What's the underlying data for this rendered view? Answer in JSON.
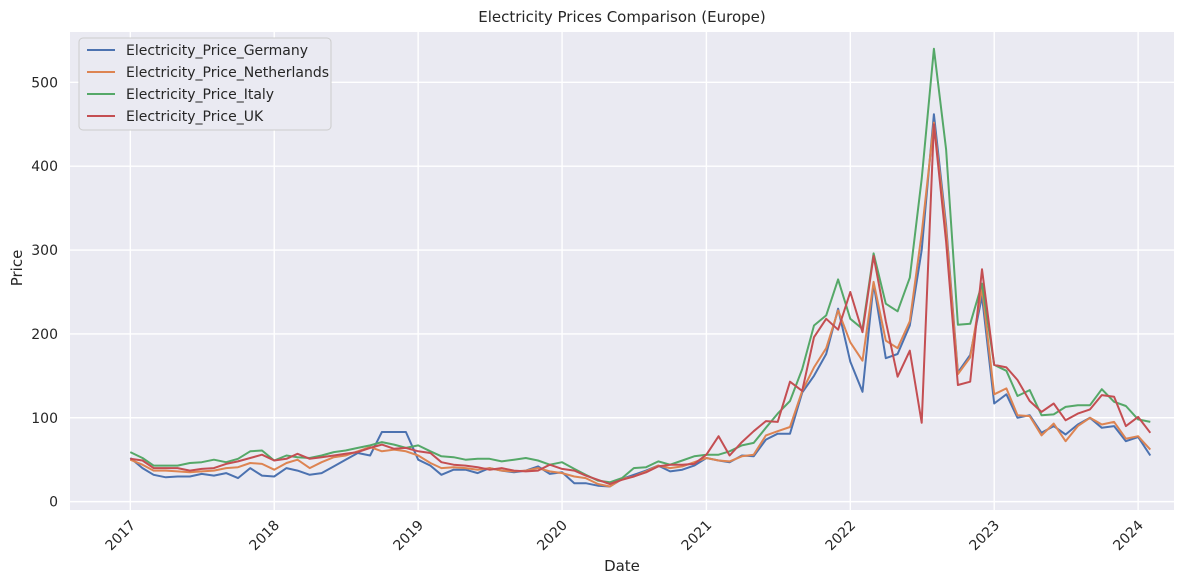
{
  "chart_data": {
    "type": "line",
    "title": "Electricity Prices Comparison (Europe)",
    "xlabel": "Date",
    "ylabel": "Price",
    "xlim": [
      "2016-08-01",
      "2024-04-01"
    ],
    "ylim": [
      -10,
      560
    ],
    "x_ticks": [
      {
        "value": "2017-01-01",
        "label": "2017"
      },
      {
        "value": "2018-01-01",
        "label": "2018"
      },
      {
        "value": "2019-01-01",
        "label": "2019"
      },
      {
        "value": "2020-01-01",
        "label": "2020"
      },
      {
        "value": "2021-01-01",
        "label": "2021"
      },
      {
        "value": "2022-01-01",
        "label": "2022"
      },
      {
        "value": "2023-01-01",
        "label": "2023"
      },
      {
        "value": "2024-01-01",
        "label": "2024"
      }
    ],
    "y_ticks": [
      0,
      100,
      200,
      300,
      400,
      500
    ],
    "grid": true,
    "legend_position": "top-left",
    "background": "#EAEAF2",
    "grid_color": "#FFFFFF",
    "x": [
      "2017-01",
      "2017-02",
      "2017-03",
      "2017-04",
      "2017-05",
      "2017-06",
      "2017-07",
      "2017-08",
      "2017-09",
      "2017-10",
      "2017-11",
      "2017-12",
      "2018-01",
      "2018-02",
      "2018-03",
      "2018-04",
      "2018-05",
      "2018-06",
      "2018-07",
      "2018-08",
      "2018-09",
      "2018-10",
      "2018-11",
      "2018-12",
      "2019-01",
      "2019-02",
      "2019-03",
      "2019-04",
      "2019-05",
      "2019-06",
      "2019-07",
      "2019-08",
      "2019-09",
      "2019-10",
      "2019-11",
      "2019-12",
      "2020-01",
      "2020-02",
      "2020-03",
      "2020-04",
      "2020-05",
      "2020-06",
      "2020-07",
      "2020-08",
      "2020-09",
      "2020-10",
      "2020-11",
      "2020-12",
      "2021-01",
      "2021-02",
      "2021-03",
      "2021-04",
      "2021-05",
      "2021-06",
      "2021-07",
      "2021-08",
      "2021-09",
      "2021-10",
      "2021-11",
      "2021-12",
      "2022-01",
      "2022-02",
      "2022-03",
      "2022-04",
      "2022-05",
      "2022-06",
      "2022-07",
      "2022-08",
      "2022-09",
      "2022-10",
      "2022-11",
      "2022-12",
      "2023-01",
      "2023-02",
      "2023-03",
      "2023-04",
      "2023-05",
      "2023-06",
      "2023-07",
      "2023-08",
      "2023-09",
      "2023-10",
      "2023-11",
      "2023-12",
      "2024-01",
      "2024-02"
    ],
    "series": [
      {
        "name": "Electricity_Price_Germany",
        "color": "#4C72B0",
        "values": [
          52,
          40,
          32,
          29,
          30,
          30,
          33,
          31,
          34,
          28,
          40,
          31,
          30,
          40,
          37,
          32,
          34,
          42,
          50,
          58,
          55,
          83,
          83,
          83,
          50,
          43,
          32,
          38,
          38,
          34,
          40,
          37,
          35,
          37,
          42,
          33,
          35,
          22,
          22,
          19,
          18,
          27,
          32,
          37,
          43,
          36,
          38,
          43,
          52,
          49,
          47,
          55,
          54,
          74,
          81,
          81,
          130,
          150,
          176,
          230,
          167,
          131,
          260,
          171,
          176,
          210,
          300,
          462,
          330,
          154,
          175,
          245,
          117,
          128,
          100,
          103,
          82,
          90,
          80,
          92,
          100,
          88,
          90,
          72,
          77,
          55
        ]
      },
      {
        "name": "Electricity_Price_Netherlands",
        "color": "#DD8452",
        "values": [
          50,
          44,
          37,
          37,
          36,
          35,
          36,
          37,
          40,
          41,
          46,
          45,
          38,
          46,
          50,
          40,
          47,
          53,
          55,
          60,
          65,
          60,
          62,
          60,
          55,
          46,
          40,
          41,
          40,
          38,
          40,
          37,
          36,
          37,
          40,
          36,
          34,
          30,
          28,
          21,
          18,
          27,
          30,
          36,
          43,
          40,
          42,
          47,
          52,
          49,
          48,
          54,
          56,
          79,
          84,
          89,
          132,
          160,
          183,
          228,
          190,
          168,
          262,
          192,
          183,
          215,
          320,
          452,
          325,
          152,
          172,
          255,
          128,
          135,
          103,
          102,
          79,
          93,
          72,
          90,
          100,
          92,
          95,
          75,
          78,
          62
        ]
      },
      {
        "name": "Electricity_Price_Italy",
        "color": "#55A868",
        "values": [
          59,
          52,
          43,
          43,
          43,
          46,
          47,
          50,
          47,
          51,
          60,
          61,
          49,
          55,
          53,
          52,
          55,
          59,
          61,
          64,
          67,
          71,
          68,
          64,
          67,
          60,
          54,
          53,
          50,
          51,
          51,
          48,
          50,
          52,
          49,
          44,
          47,
          39,
          32,
          25,
          23,
          28,
          40,
          41,
          48,
          44,
          49,
          54,
          56,
          56,
          60,
          67,
          70,
          88,
          105,
          120,
          158,
          210,
          222,
          265,
          218,
          206,
          296,
          236,
          227,
          267,
          385,
          540,
          420,
          211,
          212,
          260,
          163,
          156,
          126,
          133,
          103,
          104,
          113,
          115,
          115,
          134,
          119,
          114,
          98,
          95
        ]
      },
      {
        "name": "Electricity_Price_UK",
        "color": "#C44E52",
        "values": [
          51,
          49,
          40,
          40,
          40,
          37,
          39,
          40,
          45,
          48,
          52,
          56,
          49,
          51,
          57,
          51,
          53,
          55,
          57,
          59,
          64,
          68,
          63,
          64,
          60,
          58,
          47,
          44,
          43,
          41,
          38,
          40,
          37,
          36,
          37,
          44,
          39,
          37,
          31,
          26,
          21,
          26,
          30,
          35,
          42,
          44,
          44,
          45,
          56,
          78,
          55,
          71,
          84,
          96,
          95,
          143,
          132,
          196,
          218,
          205,
          250,
          202,
          293,
          215,
          149,
          180,
          94,
          450,
          310,
          139,
          143,
          277,
          163,
          160,
          145,
          120,
          107,
          117,
          97,
          105,
          110,
          127,
          125,
          90,
          101,
          82
        ]
      }
    ]
  }
}
